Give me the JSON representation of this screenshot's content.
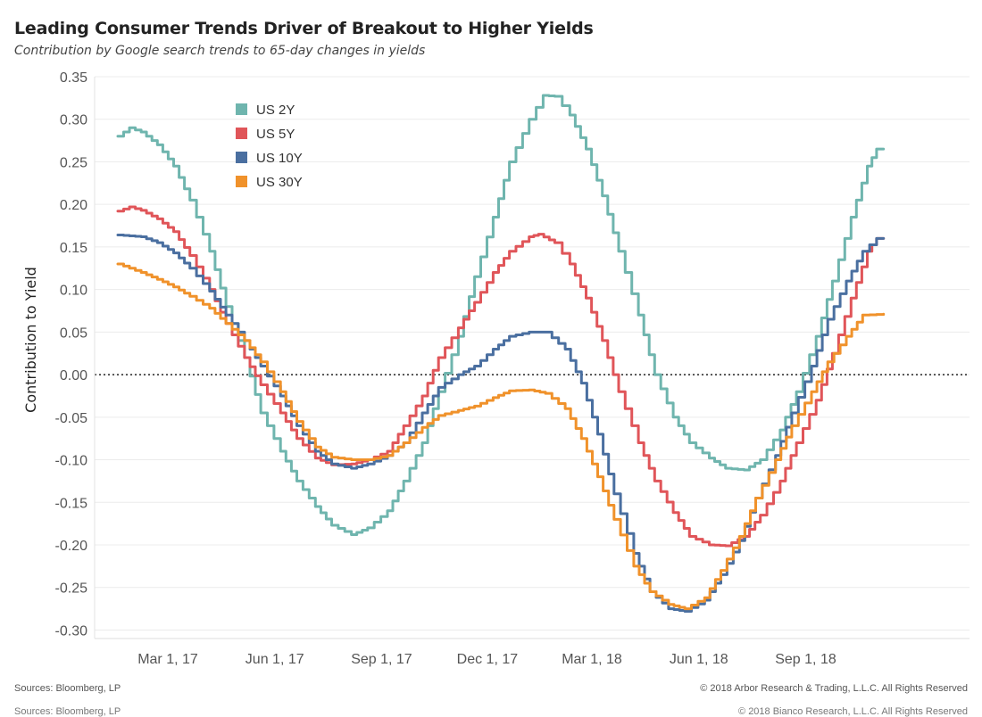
{
  "header": {
    "title": "Leading Consumer Trends Driver of Breakout to Higher Yields",
    "subtitle": "Contribution by Google search trends to 65-day changes in yields"
  },
  "footer": {
    "source": "Sources: Bloomberg, LP",
    "copyright": "© 2018 Arbor Research & Trading, L.L.C. All Rights Reserved",
    "source_ghost": "Sources: Bloomberg, LP",
    "copyright_ghost": "© 2018 Bianco Research, L.L.C. All Rights Reserved"
  },
  "chart_data": {
    "type": "line",
    "title": "Leading Consumer Trends Driver of Breakout to Higher Yields",
    "subtitle": "Contribution by Google search trends to 65-day changes in yields",
    "xlabel": "",
    "ylabel": "Contribution to Yield",
    "ylim": [
      -0.31,
      0.35
    ],
    "yticks": [
      -0.3,
      -0.25,
      -0.2,
      -0.15,
      -0.1,
      -0.05,
      0.0,
      0.05,
      0.1,
      0.15,
      0.2,
      0.25,
      0.3,
      0.35
    ],
    "ytick_labels": [
      "-0.30",
      "-0.25",
      "-0.20",
      "-0.15",
      "-0.10",
      "-0.05",
      "0.00",
      "0.05",
      "0.10",
      "0.15",
      "0.20",
      "0.25",
      "0.30",
      "0.35"
    ],
    "xlim": [
      "2016-12-28",
      "2019-01-20"
    ],
    "xticks": [
      "2017-03-01",
      "2017-06-01",
      "2017-09-01",
      "2017-12-01",
      "2018-03-01",
      "2018-06-01",
      "2018-09-01"
    ],
    "xtick_labels": [
      "Mar 1, 17",
      "Jun 1, 17",
      "Sep 1, 17",
      "Dec 1, 17",
      "Mar 1, 18",
      "Jun 1, 18",
      "Sep 1, 18"
    ],
    "zero_line": "dotted",
    "grid": "horizontal",
    "legend_position": "top-left",
    "series": [
      {
        "name": "US 2Y",
        "color": "#6fb5ae",
        "points": [
          [
            "2017-01-17",
            0.28
          ],
          [
            "2017-01-27",
            0.29
          ],
          [
            "2017-02-06",
            0.285
          ],
          [
            "2017-02-20",
            0.27
          ],
          [
            "2017-03-06",
            0.245
          ],
          [
            "2017-03-20",
            0.205
          ],
          [
            "2017-04-06",
            0.145
          ],
          [
            "2017-04-20",
            0.08
          ],
          [
            "2017-05-06",
            0.02
          ],
          [
            "2017-05-20",
            -0.045
          ],
          [
            "2017-06-06",
            -0.09
          ],
          [
            "2017-06-20",
            -0.125
          ],
          [
            "2017-07-06",
            -0.155
          ],
          [
            "2017-07-20",
            -0.177
          ],
          [
            "2017-08-06",
            -0.188
          ],
          [
            "2017-08-20",
            -0.18
          ],
          [
            "2017-09-06",
            -0.16
          ],
          [
            "2017-09-20",
            -0.125
          ],
          [
            "2017-10-06",
            -0.08
          ],
          [
            "2017-10-20",
            -0.02
          ],
          [
            "2017-11-06",
            0.045
          ],
          [
            "2017-11-20",
            0.115
          ],
          [
            "2017-12-06",
            0.185
          ],
          [
            "2017-12-20",
            0.25
          ],
          [
            "2018-01-06",
            0.3
          ],
          [
            "2018-01-18",
            0.328
          ],
          [
            "2018-01-28",
            0.327
          ],
          [
            "2018-02-10",
            0.305
          ],
          [
            "2018-02-24",
            0.265
          ],
          [
            "2018-03-10",
            0.21
          ],
          [
            "2018-03-24",
            0.145
          ],
          [
            "2018-04-10",
            0.07
          ],
          [
            "2018-04-24",
            0.0
          ],
          [
            "2018-05-10",
            -0.05
          ],
          [
            "2018-05-24",
            -0.08
          ],
          [
            "2018-06-10",
            -0.098
          ],
          [
            "2018-06-24",
            -0.11
          ],
          [
            "2018-07-10",
            -0.112
          ],
          [
            "2018-07-24",
            -0.1
          ],
          [
            "2018-08-10",
            -0.065
          ],
          [
            "2018-08-24",
            -0.02
          ],
          [
            "2018-09-10",
            0.045
          ],
          [
            "2018-09-24",
            0.11
          ],
          [
            "2018-10-10",
            0.185
          ],
          [
            "2018-10-24",
            0.245
          ],
          [
            "2018-11-01",
            0.265
          ],
          [
            "2018-11-07",
            0.265
          ]
        ]
      },
      {
        "name": "US 5Y",
        "color": "#e05559",
        "points": [
          [
            "2017-01-17",
            0.192
          ],
          [
            "2017-01-27",
            0.197
          ],
          [
            "2017-02-06",
            0.193
          ],
          [
            "2017-02-20",
            0.183
          ],
          [
            "2017-03-06",
            0.168
          ],
          [
            "2017-03-20",
            0.14
          ],
          [
            "2017-04-06",
            0.1
          ],
          [
            "2017-04-20",
            0.06
          ],
          [
            "2017-05-06",
            0.02
          ],
          [
            "2017-05-20",
            -0.012
          ],
          [
            "2017-06-06",
            -0.045
          ],
          [
            "2017-06-20",
            -0.075
          ],
          [
            "2017-07-06",
            -0.098
          ],
          [
            "2017-07-20",
            -0.106
          ],
          [
            "2017-08-06",
            -0.105
          ],
          [
            "2017-08-20",
            -0.1
          ],
          [
            "2017-09-06",
            -0.09
          ],
          [
            "2017-09-20",
            -0.06
          ],
          [
            "2017-10-06",
            -0.025
          ],
          [
            "2017-10-20",
            0.02
          ],
          [
            "2017-11-06",
            0.055
          ],
          [
            "2017-11-20",
            0.085
          ],
          [
            "2017-12-06",
            0.12
          ],
          [
            "2017-12-20",
            0.145
          ],
          [
            "2018-01-06",
            0.162
          ],
          [
            "2018-01-14",
            0.165
          ],
          [
            "2018-01-28",
            0.155
          ],
          [
            "2018-02-10",
            0.13
          ],
          [
            "2018-02-24",
            0.09
          ],
          [
            "2018-03-10",
            0.04
          ],
          [
            "2018-03-24",
            -0.02
          ],
          [
            "2018-04-10",
            -0.08
          ],
          [
            "2018-04-24",
            -0.125
          ],
          [
            "2018-05-10",
            -0.162
          ],
          [
            "2018-05-24",
            -0.19
          ],
          [
            "2018-06-10",
            -0.2
          ],
          [
            "2018-06-24",
            -0.201
          ],
          [
            "2018-07-10",
            -0.19
          ],
          [
            "2018-07-24",
            -0.165
          ],
          [
            "2018-08-10",
            -0.125
          ],
          [
            "2018-08-24",
            -0.08
          ],
          [
            "2018-09-10",
            -0.03
          ],
          [
            "2018-09-24",
            0.025
          ],
          [
            "2018-10-10",
            0.09
          ],
          [
            "2018-10-24",
            0.145
          ],
          [
            "2018-11-01",
            0.16
          ],
          [
            "2018-11-07",
            0.16
          ]
        ]
      },
      {
        "name": "US 10Y",
        "color": "#4a6fa0",
        "points": [
          [
            "2017-01-17",
            0.164
          ],
          [
            "2017-02-06",
            0.162
          ],
          [
            "2017-02-20",
            0.155
          ],
          [
            "2017-03-06",
            0.143
          ],
          [
            "2017-03-20",
            0.125
          ],
          [
            "2017-04-06",
            0.098
          ],
          [
            "2017-04-20",
            0.07
          ],
          [
            "2017-05-06",
            0.04
          ],
          [
            "2017-05-20",
            0.01
          ],
          [
            "2017-06-06",
            -0.025
          ],
          [
            "2017-06-20",
            -0.06
          ],
          [
            "2017-07-06",
            -0.09
          ],
          [
            "2017-07-20",
            -0.105
          ],
          [
            "2017-08-06",
            -0.11
          ],
          [
            "2017-08-20",
            -0.105
          ],
          [
            "2017-09-06",
            -0.095
          ],
          [
            "2017-09-20",
            -0.08
          ],
          [
            "2017-10-06",
            -0.045
          ],
          [
            "2017-10-20",
            -0.015
          ],
          [
            "2017-11-06",
            0.0
          ],
          [
            "2017-11-20",
            0.01
          ],
          [
            "2017-12-06",
            0.03
          ],
          [
            "2017-12-20",
            0.045
          ],
          [
            "2018-01-06",
            0.05
          ],
          [
            "2018-01-20",
            0.05
          ],
          [
            "2018-02-06",
            0.03
          ],
          [
            "2018-02-20",
            -0.01
          ],
          [
            "2018-03-06",
            -0.07
          ],
          [
            "2018-03-20",
            -0.14
          ],
          [
            "2018-04-06",
            -0.21
          ],
          [
            "2018-04-20",
            -0.255
          ],
          [
            "2018-05-06",
            -0.275
          ],
          [
            "2018-05-20",
            -0.278
          ],
          [
            "2018-06-06",
            -0.265
          ],
          [
            "2018-06-20",
            -0.235
          ],
          [
            "2018-07-06",
            -0.195
          ],
          [
            "2018-07-20",
            -0.145
          ],
          [
            "2018-08-06",
            -0.095
          ],
          [
            "2018-08-20",
            -0.045
          ],
          [
            "2018-09-06",
            0.01
          ],
          [
            "2018-09-20",
            0.065
          ],
          [
            "2018-10-06",
            0.11
          ],
          [
            "2018-10-20",
            0.145
          ],
          [
            "2018-11-01",
            0.16
          ],
          [
            "2018-11-07",
            0.16
          ]
        ]
      },
      {
        "name": "US 30Y",
        "color": "#f0922b",
        "points": [
          [
            "2017-01-17",
            0.13
          ],
          [
            "2017-02-06",
            0.12
          ],
          [
            "2017-02-20",
            0.112
          ],
          [
            "2017-03-06",
            0.103
          ],
          [
            "2017-03-20",
            0.092
          ],
          [
            "2017-04-06",
            0.078
          ],
          [
            "2017-04-20",
            0.06
          ],
          [
            "2017-05-06",
            0.04
          ],
          [
            "2017-05-20",
            0.015
          ],
          [
            "2017-06-06",
            -0.02
          ],
          [
            "2017-06-20",
            -0.055
          ],
          [
            "2017-07-06",
            -0.085
          ],
          [
            "2017-07-20",
            -0.097
          ],
          [
            "2017-08-06",
            -0.1
          ],
          [
            "2017-08-20",
            -0.1
          ],
          [
            "2017-09-06",
            -0.095
          ],
          [
            "2017-09-20",
            -0.08
          ],
          [
            "2017-10-06",
            -0.062
          ],
          [
            "2017-10-20",
            -0.048
          ],
          [
            "2017-11-06",
            -0.042
          ],
          [
            "2017-11-20",
            -0.037
          ],
          [
            "2017-12-06",
            -0.027
          ],
          [
            "2017-12-20",
            -0.019
          ],
          [
            "2018-01-06",
            -0.018
          ],
          [
            "2018-01-20",
            -0.022
          ],
          [
            "2018-02-06",
            -0.04
          ],
          [
            "2018-02-20",
            -0.075
          ],
          [
            "2018-03-06",
            -0.12
          ],
          [
            "2018-03-20",
            -0.17
          ],
          [
            "2018-04-06",
            -0.225
          ],
          [
            "2018-04-20",
            -0.255
          ],
          [
            "2018-05-06",
            -0.27
          ],
          [
            "2018-05-20",
            -0.275
          ],
          [
            "2018-06-06",
            -0.262
          ],
          [
            "2018-06-20",
            -0.23
          ],
          [
            "2018-07-06",
            -0.19
          ],
          [
            "2018-07-20",
            -0.145
          ],
          [
            "2018-08-06",
            -0.1
          ],
          [
            "2018-08-20",
            -0.06
          ],
          [
            "2018-09-06",
            -0.02
          ],
          [
            "2018-09-20",
            0.015
          ],
          [
            "2018-10-06",
            0.045
          ],
          [
            "2018-10-20",
            0.07
          ],
          [
            "2018-11-07",
            0.071
          ]
        ]
      }
    ]
  }
}
